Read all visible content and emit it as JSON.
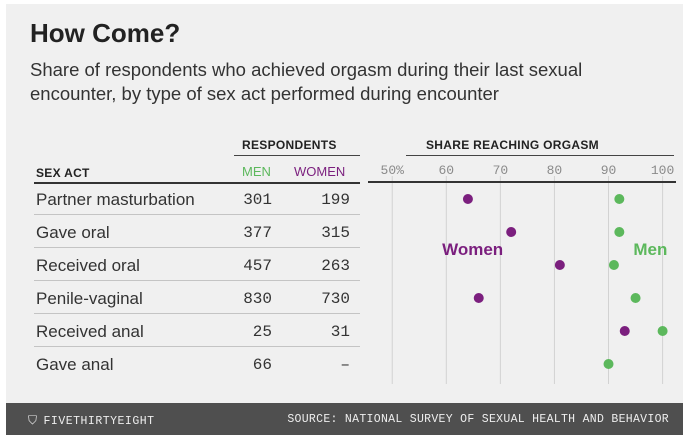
{
  "title": "How Come?",
  "subtitle": "Share of respondents who achieved orgasm during their last sexual encounter, by type of sex act performed during encounter",
  "table": {
    "group_header": "RESPONDENTS",
    "sex_act_header": "SEX ACT",
    "men_header": "MEN",
    "women_header": "WOMEN",
    "rows": [
      {
        "act": "Partner masturbation",
        "men": "301",
        "women": "199"
      },
      {
        "act": "Gave oral",
        "men": "377",
        "women": "315"
      },
      {
        "act": "Received oral",
        "men": "457",
        "women": "263"
      },
      {
        "act": "Penile-vaginal",
        "men": "830",
        "women": "730"
      },
      {
        "act": "Received anal",
        "men": "25",
        "women": "31"
      },
      {
        "act": "Gave anal",
        "men": "66",
        "women": "–"
      }
    ]
  },
  "chart_data": {
    "type": "scatter",
    "title": "SHARE REACHING ORGASM",
    "categories": [
      "Partner masturbation",
      "Gave oral",
      "Received oral",
      "Penile-vaginal",
      "Received anal",
      "Gave anal"
    ],
    "x_ticks": [
      50,
      60,
      70,
      80,
      90,
      100
    ],
    "x_tick_labels": [
      "50%",
      "60",
      "70",
      "80",
      "90",
      "100"
    ],
    "xlim": [
      47,
      101
    ],
    "grid": true,
    "series": [
      {
        "name": "Women",
        "color": "#7b1f7e",
        "values": [
          64,
          72,
          81,
          66,
          93,
          null
        ]
      },
      {
        "name": "Men",
        "color": "#5cb85c",
        "values": [
          92,
          92,
          91,
          95,
          100,
          90
        ]
      }
    ]
  },
  "footer": {
    "brand": "FIVETHIRTYEIGHT",
    "brand_icon": "fivethirtyeight-logo-icon",
    "source": "SOURCE: NATIONAL SURVEY OF SEXUAL HEALTH AND BEHAVIOR"
  },
  "colors": {
    "men": "#5cb85c",
    "women": "#7b1f7e",
    "footer_bg": "#4f4f4f",
    "panel_bg": "#f0f0f0"
  }
}
